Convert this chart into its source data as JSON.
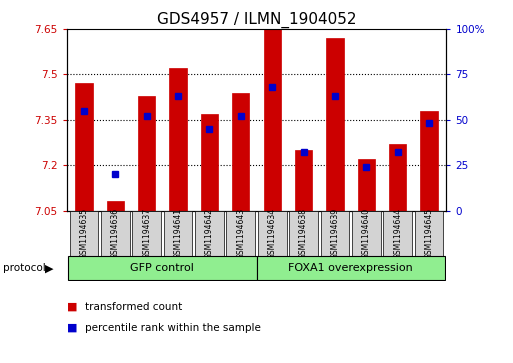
{
  "title": "GDS4957 / ILMN_1904052",
  "samples": [
    "GSM1194635",
    "GSM1194636",
    "GSM1194637",
    "GSM1194641",
    "GSM1194642",
    "GSM1194643",
    "GSM1194634",
    "GSM1194638",
    "GSM1194639",
    "GSM1194640",
    "GSM1194644",
    "GSM1194645"
  ],
  "transformed_count": [
    7.47,
    7.08,
    7.43,
    7.52,
    7.37,
    7.44,
    7.66,
    7.25,
    7.62,
    7.22,
    7.27,
    7.38
  ],
  "percentile_rank": [
    55,
    20,
    52,
    63,
    45,
    52,
    68,
    32,
    63,
    24,
    32,
    48
  ],
  "ylim_left": [
    7.05,
    7.65
  ],
  "ylim_right": [
    0,
    100
  ],
  "yticks_left": [
    7.05,
    7.2,
    7.35,
    7.5,
    7.65
  ],
  "yticks_right": [
    0,
    25,
    50,
    75,
    100
  ],
  "bar_color": "#CC0000",
  "dot_color": "#0000CC",
  "groups": [
    {
      "label": "GFP control",
      "start": 0,
      "end": 6,
      "color": "#90EE90"
    },
    {
      "label": "FOXA1 overexpression",
      "start": 6,
      "end": 12,
      "color": "#90EE90"
    }
  ],
  "protocol_label": "protocol",
  "legend_items": [
    {
      "label": "transformed count",
      "color": "#CC0000"
    },
    {
      "label": "percentile rank within the sample",
      "color": "#0000CC"
    }
  ],
  "bar_width": 0.55,
  "dot_size": 4,
  "background_color": "#ffffff",
  "plot_bg_color": "#ffffff",
  "tick_label_bg": "#d3d3d3",
  "title_fontsize": 11,
  "tick_fontsize": 7.5,
  "group_fontsize": 8,
  "legend_fontsize": 7.5
}
